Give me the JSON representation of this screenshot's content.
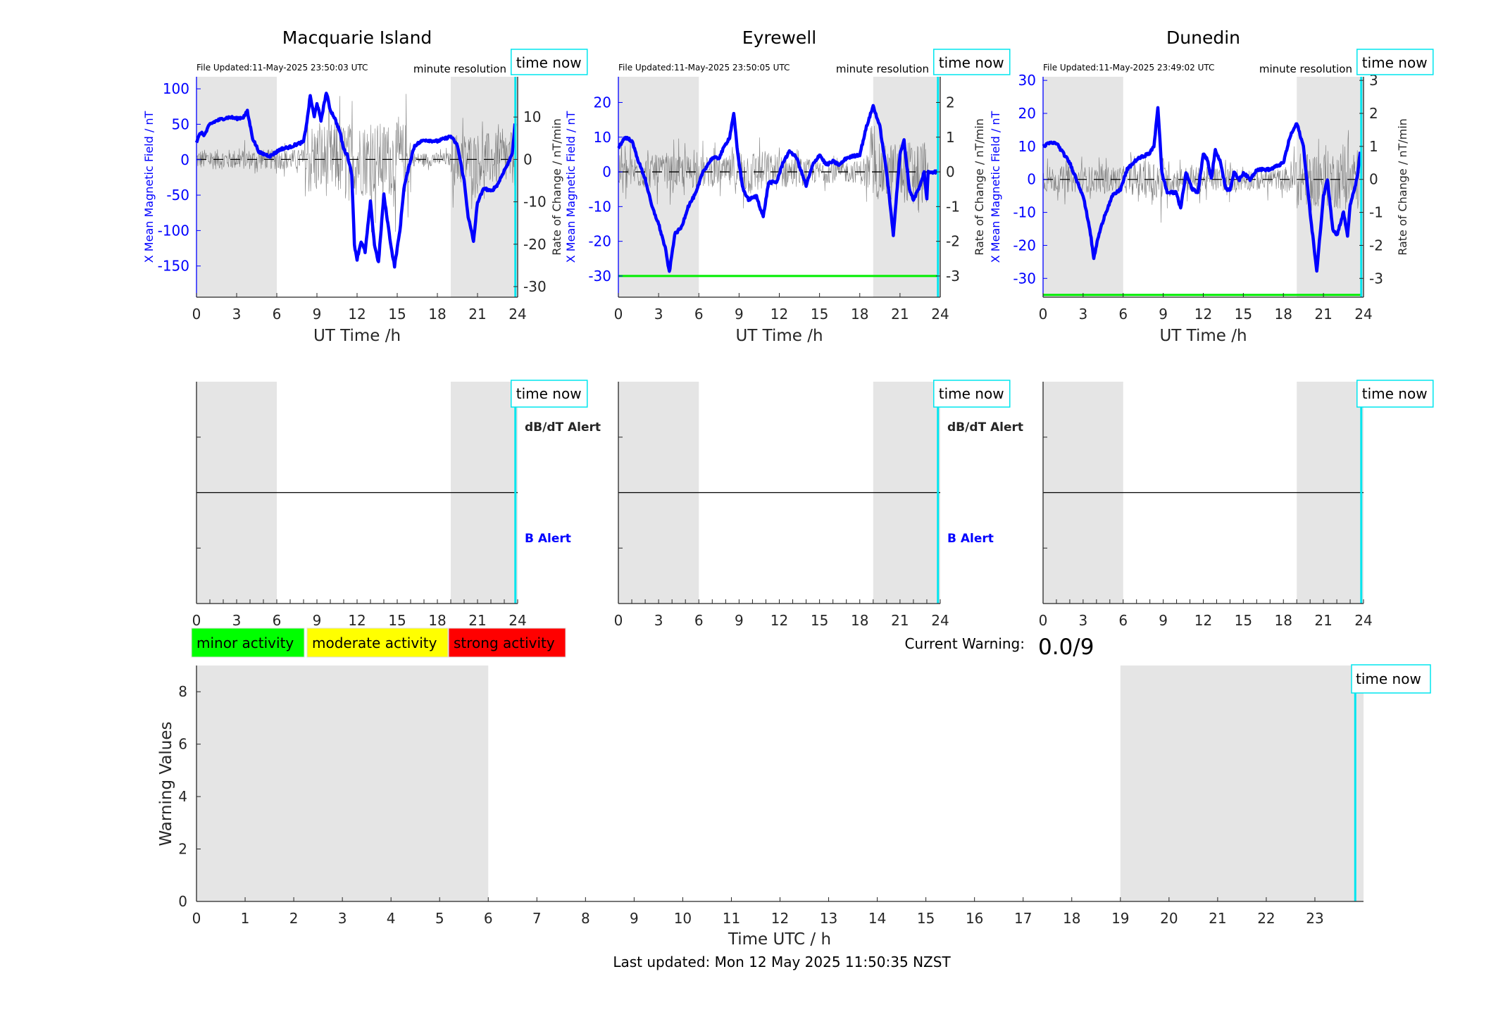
{
  "stations": [
    {
      "title": "Macquarie Island",
      "file_updated": "File Updated:11-May-2025 23:50:03 UTC",
      "resolution": "minute resolution",
      "time_now": "time now",
      "xlabel": "UT Time /h",
      "ylabel_left": "X Mean Magnetic Field / nT",
      "ylabel_right": "Rate of Change / nT/min",
      "ylim_left": [
        -194,
        117
      ],
      "ylim_right": [
        -32.5,
        19.5
      ],
      "yticks_left": [
        100,
        50,
        0,
        -50,
        -100,
        -150
      ],
      "yticks_right": [
        10,
        0,
        -10,
        -20,
        -30
      ],
      "xticks": [
        0,
        3,
        6,
        9,
        12,
        15,
        18,
        21,
        24
      ],
      "threshold": null,
      "now_hour": 23.83,
      "night_shading": [
        [
          0,
          6
        ],
        [
          19,
          24
        ]
      ],
      "field_series": [
        [
          0,
          25
        ],
        [
          0.3,
          38
        ],
        [
          0.6,
          35
        ],
        [
          1,
          50
        ],
        [
          1.5,
          55
        ],
        [
          2,
          58
        ],
        [
          2.5,
          60
        ],
        [
          3,
          58
        ],
        [
          3.5,
          60
        ],
        [
          3.8,
          68
        ],
        [
          4.2,
          30
        ],
        [
          4.7,
          10
        ],
        [
          5.5,
          5
        ],
        [
          6.3,
          15
        ],
        [
          7,
          18
        ],
        [
          7.5,
          22
        ],
        [
          8,
          25
        ],
        [
          8.3,
          60
        ],
        [
          8.5,
          90
        ],
        [
          8.8,
          60
        ],
        [
          9,
          80
        ],
        [
          9.3,
          55
        ],
        [
          9.7,
          95
        ],
        [
          10,
          70
        ],
        [
          10.3,
          60
        ],
        [
          10.7,
          40
        ],
        [
          11,
          15
        ],
        [
          11.3,
          5
        ],
        [
          11.6,
          -20
        ],
        [
          11.8,
          -120
        ],
        [
          12,
          -140
        ],
        [
          12.3,
          -115
        ],
        [
          12.6,
          -130
        ],
        [
          13,
          -60
        ],
        [
          13.3,
          -120
        ],
        [
          13.6,
          -145
        ],
        [
          14,
          -50
        ],
        [
          14.3,
          -90
        ],
        [
          14.6,
          -130
        ],
        [
          14.8,
          -150
        ],
        [
          15.2,
          -100
        ],
        [
          15.5,
          -40
        ],
        [
          16,
          0
        ],
        [
          16.3,
          20
        ],
        [
          17,
          28
        ],
        [
          18,
          26
        ],
        [
          19,
          33
        ],
        [
          19.5,
          20
        ],
        [
          20,
          -30
        ],
        [
          20.3,
          -80
        ],
        [
          20.7,
          -115
        ],
        [
          21,
          -60
        ],
        [
          21.5,
          -40
        ],
        [
          22,
          -45
        ],
        [
          22.5,
          -35
        ],
        [
          23,
          -15
        ],
        [
          23.3,
          -5
        ],
        [
          23.6,
          10
        ],
        [
          23.83,
          55
        ]
      ],
      "rate_noise_amplitude": [
        [
          0,
          3
        ],
        [
          8,
          3
        ],
        [
          8.1,
          11
        ],
        [
          16,
          11
        ],
        [
          16.1,
          2
        ],
        [
          19,
          2
        ],
        [
          19.1,
          8
        ],
        [
          23.83,
          8
        ]
      ],
      "alert": {
        "dbdt_label": "dB/dT Alert",
        "b_label": "B Alert"
      }
    },
    {
      "title": "Eyrewell",
      "file_updated": "File Updated:11-May-2025 23:50:05 UTC",
      "resolution": "minute resolution",
      "time_now": "time now",
      "xlabel": "UT Time /h",
      "ylabel_left": "X Mean Magnetic Field / nT",
      "ylabel_right": "Rate of Change / nT/min",
      "ylim_left": [
        -36.1,
        27.4
      ],
      "ylim_right": [
        -3.61,
        2.74
      ],
      "yticks_left": [
        20,
        10,
        0,
        -10,
        -20,
        -30
      ],
      "yticks_right": [
        2,
        1,
        0,
        -1,
        -2,
        -3
      ],
      "xticks": [
        0,
        3,
        6,
        9,
        12,
        15,
        18,
        21,
        24
      ],
      "threshold": -30,
      "now_hour": 23.83,
      "night_shading": [
        [
          0,
          6
        ],
        [
          19,
          24
        ]
      ],
      "field_series": [
        [
          0,
          7
        ],
        [
          0.5,
          10
        ],
        [
          1,
          9
        ],
        [
          1.5,
          3
        ],
        [
          2,
          -2
        ],
        [
          2.5,
          -10
        ],
        [
          3,
          -15
        ],
        [
          3.5,
          -22
        ],
        [
          3.8,
          -29
        ],
        [
          4.2,
          -18
        ],
        [
          4.7,
          -16
        ],
        [
          5.2,
          -10
        ],
        [
          5.8,
          -6
        ],
        [
          6.3,
          0
        ],
        [
          7,
          4
        ],
        [
          7.5,
          4
        ],
        [
          8,
          8
        ],
        [
          8.3,
          10
        ],
        [
          8.6,
          17
        ],
        [
          8.9,
          5
        ],
        [
          9.3,
          -5
        ],
        [
          9.7,
          -8
        ],
        [
          10.3,
          -7
        ],
        [
          10.8,
          -13
        ],
        [
          11.2,
          -3
        ],
        [
          11.8,
          -3
        ],
        [
          12.3,
          3
        ],
        [
          12.8,
          6
        ],
        [
          13.3,
          4
        ],
        [
          14,
          -4
        ],
        [
          14.5,
          2
        ],
        [
          15,
          5
        ],
        [
          15.5,
          2
        ],
        [
          16,
          3
        ],
        [
          16.5,
          2
        ],
        [
          17,
          4
        ],
        [
          18,
          5
        ],
        [
          18.5,
          13
        ],
        [
          19,
          19
        ],
        [
          19.5,
          13
        ],
        [
          20,
          0
        ],
        [
          20.5,
          -18
        ],
        [
          21,
          5
        ],
        [
          21.3,
          9
        ],
        [
          21.7,
          -5
        ],
        [
          22,
          -8
        ],
        [
          22.5,
          -4
        ],
        [
          22.8,
          0
        ],
        [
          23,
          -8
        ],
        [
          23.1,
          0
        ],
        [
          23.83,
          0
        ]
      ],
      "rate_noise_amplitude": [
        [
          0,
          0.6
        ],
        [
          6,
          0.6
        ],
        [
          8,
          0.5
        ],
        [
          9,
          0.9
        ],
        [
          15,
          0.4
        ],
        [
          18,
          0.4
        ],
        [
          19,
          1.0
        ],
        [
          23,
          1.2
        ],
        [
          23.1,
          0
        ],
        [
          23.83,
          0
        ]
      ],
      "alert": {
        "dbdt_label": "dB/dT Alert",
        "b_label": "B Alert"
      }
    },
    {
      "title": "Dunedin",
      "file_updated": "File Updated:11-May-2025 23:49:02 UTC",
      "resolution": "minute resolution",
      "time_now": "time now",
      "xlabel": "UT Time /h",
      "ylabel_left": "X Mean Magnetic Field / nT",
      "ylabel_right": "Rate of Change / nT/min",
      "ylim_left": [
        -35.7,
        31.1
      ],
      "ylim_right": [
        -3.57,
        3.11
      ],
      "yticks_left": [
        30,
        20,
        10,
        0,
        -10,
        -20,
        -30
      ],
      "yticks_right": [
        3,
        2,
        1,
        0,
        -1,
        -2,
        -3
      ],
      "xticks": [
        0,
        3,
        6,
        9,
        12,
        15,
        18,
        21,
        24
      ],
      "threshold": -35,
      "now_hour": 23.83,
      "night_shading": [
        [
          0,
          6
        ],
        [
          19,
          24
        ]
      ],
      "field_series": [
        [
          0,
          10
        ],
        [
          0.5,
          11
        ],
        [
          1,
          11
        ],
        [
          1.5,
          8
        ],
        [
          2,
          5
        ],
        [
          2.5,
          0
        ],
        [
          3,
          -5
        ],
        [
          3.5,
          -15
        ],
        [
          3.8,
          -24
        ],
        [
          4.1,
          -18
        ],
        [
          4.6,
          -11
        ],
        [
          5.2,
          -5
        ],
        [
          5.8,
          -3
        ],
        [
          6.3,
          3
        ],
        [
          7,
          6
        ],
        [
          7.5,
          7
        ],
        [
          8,
          8
        ],
        [
          8.3,
          10
        ],
        [
          8.6,
          22
        ],
        [
          8.9,
          2
        ],
        [
          9.3,
          -4
        ],
        [
          9.6,
          -4
        ],
        [
          10,
          -4
        ],
        [
          10.3,
          -9
        ],
        [
          10.7,
          2
        ],
        [
          11.2,
          -3
        ],
        [
          11.6,
          -4
        ],
        [
          12,
          8
        ],
        [
          12.3,
          6
        ],
        [
          12.6,
          0
        ],
        [
          12.9,
          9
        ],
        [
          13.3,
          5
        ],
        [
          13.7,
          -3
        ],
        [
          14,
          -3
        ],
        [
          14.3,
          2
        ],
        [
          14.7,
          0
        ],
        [
          15,
          2
        ],
        [
          15.5,
          0
        ],
        [
          16,
          3
        ],
        [
          17,
          3
        ],
        [
          18,
          5
        ],
        [
          18.5,
          13
        ],
        [
          19,
          17
        ],
        [
          19.5,
          10
        ],
        [
          20,
          -10
        ],
        [
          20.5,
          -28
        ],
        [
          21,
          -5
        ],
        [
          21.3,
          0
        ],
        [
          21.7,
          -15
        ],
        [
          22,
          -17
        ],
        [
          22.5,
          -10
        ],
        [
          22.8,
          -17
        ],
        [
          23,
          -8
        ],
        [
          23.5,
          0
        ],
        [
          23.75,
          8
        ]
      ],
      "rate_noise_amplitude": [
        [
          0,
          0.5
        ],
        [
          6,
          0.5
        ],
        [
          9,
          0.9
        ],
        [
          10,
          0.5
        ],
        [
          18,
          0.4
        ],
        [
          19,
          1.0
        ],
        [
          23.75,
          1.2
        ]
      ],
      "alert": null
    }
  ],
  "legend": [
    {
      "label": "minor activity",
      "color": "#00ff00"
    },
    {
      "label": "moderate activity",
      "color": "#ffff00"
    },
    {
      "label": "strong activity",
      "color": "#ff0000"
    }
  ],
  "current_warning": {
    "label": "Current Warning:",
    "value": "0.0/9"
  },
  "warning_chart": {
    "type": "line",
    "ylabel": "Warning Values",
    "xlabel": "Time UTC / h",
    "ylim": [
      0,
      9
    ],
    "xlim": [
      0,
      24
    ],
    "yticks": [
      0,
      2,
      4,
      6,
      8
    ],
    "xticks": [
      0,
      1,
      2,
      3,
      4,
      5,
      6,
      7,
      8,
      9,
      10,
      11,
      12,
      13,
      14,
      15,
      16,
      17,
      18,
      19,
      20,
      21,
      22,
      23
    ],
    "night_shading": [
      [
        0,
        6
      ],
      [
        19,
        24
      ]
    ],
    "now_hour": 23.83,
    "time_now": "time now"
  },
  "chart_data": [
    {
      "type": "line",
      "title": "Macquarie Island",
      "xlabel": "UT Time /h",
      "ylabel": "X Mean Magnetic Field / nT",
      "y2label": "Rate of Change / nT/min",
      "xlim": [
        0,
        24
      ],
      "ylim": [
        -194,
        117
      ]
    },
    {
      "type": "line",
      "title": "Eyrewell",
      "xlabel": "UT Time /h",
      "ylabel": "X Mean Magnetic Field / nT",
      "y2label": "Rate of Change / nT/min",
      "xlim": [
        0,
        24
      ],
      "ylim": [
        -36.1,
        27.4
      ]
    },
    {
      "type": "line",
      "title": "Dunedin",
      "xlabel": "UT Time /h",
      "ylabel": "X Mean Magnetic Field / nT",
      "y2label": "Rate of Change / nT/min",
      "xlim": [
        0,
        24
      ],
      "ylim": [
        -35.7,
        31.1
      ]
    },
    {
      "type": "line",
      "title": "",
      "xlabel": "Time UTC / h",
      "ylabel": "Warning Values",
      "xlim": [
        0,
        24
      ],
      "ylim": [
        0,
        9
      ],
      "series": [
        {
          "name": "warning",
          "values": []
        }
      ]
    }
  ],
  "footer": "Last updated: Mon 12 May 2025 11:50:35 NZST",
  "colors": {
    "field": "#0000ff",
    "rate": "#000000",
    "now": "#00e5ee",
    "night": "#e5e5e5",
    "threshold": "#00ee00"
  }
}
